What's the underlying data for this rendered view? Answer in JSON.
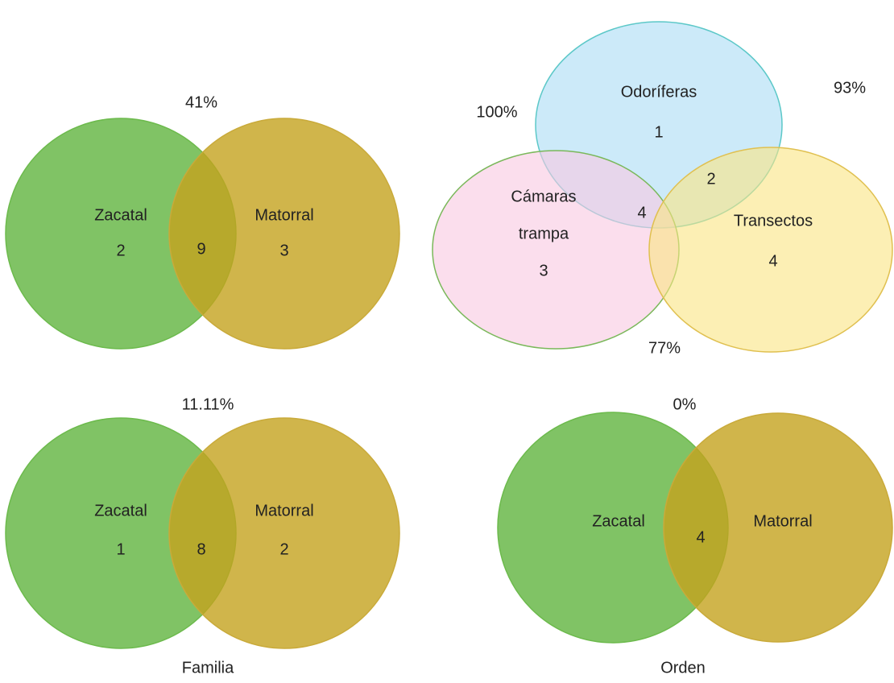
{
  "panels": [
    {
      "percentage": "41%",
      "left": {
        "label": "Zacatal",
        "count": 2
      },
      "right": {
        "label": "Matorral",
        "count": 3
      },
      "overlap": 9
    },
    {
      "percentages": [
        "100%",
        "93%",
        "77%"
      ],
      "sets": [
        {
          "label": "Odoríferas",
          "count": 1
        },
        {
          "label_lines": [
            "Cámaras",
            "trampa"
          ],
          "count": 3
        },
        {
          "label": "Transectos",
          "count": 4
        }
      ],
      "overlaps": [
        2,
        4
      ]
    },
    {
      "percentage": "11.11%",
      "left": {
        "label": "Zacatal",
        "count": 1
      },
      "right": {
        "label": "Matorral",
        "count": 2
      },
      "overlap": 8,
      "caption": "Familia"
    },
    {
      "percentage": "0%",
      "left": {
        "label": "Zacatal"
      },
      "right": {
        "label": "Matorral"
      },
      "overlap": 4,
      "caption": "Orden"
    }
  ]
}
